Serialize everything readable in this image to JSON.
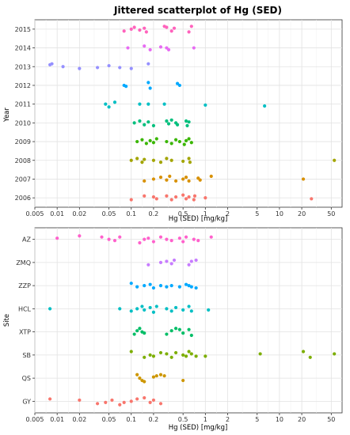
{
  "chart_data": [
    {
      "type": "scatter",
      "title": "Jittered scatterplot of Hg (SED)",
      "xlabel": "Hg (SED) [mg/kg]",
      "ylabel": "Year",
      "x_scale": "log10",
      "xlim": [
        0.005,
        70
      ],
      "x_ticks": [
        0.005,
        0.01,
        0.02,
        0.05,
        0.1,
        0.2,
        0.5,
        1,
        2,
        5,
        10,
        20,
        50
      ],
      "x_tick_labels": [
        "0.005",
        "0.01",
        "0.02",
        "0.05",
        "0.1",
        "0.2",
        "0.5",
        "1",
        "2",
        "5",
        "10",
        "20",
        "50"
      ],
      "grid": true,
      "categories": [
        "2006",
        "2007",
        "2008",
        "2009",
        "2010",
        "2011",
        "2012",
        "2013",
        "2014",
        "2015"
      ],
      "series": [
        {
          "category": "2006",
          "color": "#F8766D",
          "points": [
            [
              0.1,
              -0.1
            ],
            [
              0.15,
              0.1
            ],
            [
              0.2,
              0.05
            ],
            [
              0.22,
              -0.05
            ],
            [
              0.3,
              0.1
            ],
            [
              0.35,
              -0.1
            ],
            [
              0.4,
              0.05
            ],
            [
              0.5,
              0.15
            ],
            [
              0.55,
              -0.05
            ],
            [
              0.6,
              0.05
            ],
            [
              0.7,
              -0.1
            ],
            [
              0.72,
              0.1
            ],
            [
              1.0,
              0.0
            ],
            [
              27,
              -0.05
            ]
          ]
        },
        {
          "category": "2007",
          "color": "#D89000",
          "points": [
            [
              0.15,
              -0.1
            ],
            [
              0.2,
              0.0
            ],
            [
              0.25,
              0.1
            ],
            [
              0.3,
              -0.05
            ],
            [
              0.33,
              0.15
            ],
            [
              0.4,
              -0.1
            ],
            [
              0.5,
              0.0
            ],
            [
              0.55,
              0.1
            ],
            [
              0.6,
              -0.1
            ],
            [
              0.8,
              0.05
            ],
            [
              0.85,
              -0.05
            ],
            [
              1.2,
              0.15
            ],
            [
              21,
              0.0
            ]
          ]
        },
        {
          "category": "2008",
          "color": "#A3A500",
          "points": [
            [
              0.1,
              0.0
            ],
            [
              0.12,
              0.1
            ],
            [
              0.14,
              -0.1
            ],
            [
              0.15,
              0.05
            ],
            [
              0.2,
              0.0
            ],
            [
              0.25,
              -0.1
            ],
            [
              0.3,
              0.1
            ],
            [
              0.35,
              0.0
            ],
            [
              0.5,
              -0.05
            ],
            [
              0.6,
              0.1
            ],
            [
              0.62,
              -0.1
            ],
            [
              55,
              0.0
            ]
          ]
        },
        {
          "category": "2009",
          "color": "#39B600",
          "points": [
            [
              0.12,
              0.0
            ],
            [
              0.14,
              0.1
            ],
            [
              0.16,
              -0.1
            ],
            [
              0.18,
              0.05
            ],
            [
              0.2,
              -0.05
            ],
            [
              0.22,
              0.15
            ],
            [
              0.3,
              0.0
            ],
            [
              0.35,
              -0.1
            ],
            [
              0.4,
              0.1
            ],
            [
              0.45,
              0.0
            ],
            [
              0.52,
              -0.15
            ],
            [
              0.55,
              0.05
            ],
            [
              0.6,
              0.15
            ],
            [
              0.65,
              -0.05
            ]
          ]
        },
        {
          "category": "2010",
          "color": "#00BF7D",
          "points": [
            [
              0.11,
              0.0
            ],
            [
              0.13,
              0.1
            ],
            [
              0.15,
              -0.1
            ],
            [
              0.17,
              0.05
            ],
            [
              0.2,
              -0.15
            ],
            [
              0.3,
              0.1
            ],
            [
              0.32,
              -0.05
            ],
            [
              0.35,
              0.15
            ],
            [
              0.4,
              0.0
            ],
            [
              0.42,
              -0.1
            ],
            [
              0.55,
              0.1
            ],
            [
              0.57,
              -0.15
            ],
            [
              0.6,
              0.05
            ]
          ]
        },
        {
          "category": "2011",
          "color": "#00BFC4",
          "points": [
            [
              0.045,
              0.0
            ],
            [
              0.05,
              -0.15
            ],
            [
              0.06,
              0.1
            ],
            [
              0.13,
              0.0
            ],
            [
              0.17,
              0.0
            ],
            [
              0.28,
              0.0
            ],
            [
              1.0,
              -0.05
            ],
            [
              6.3,
              -0.1
            ]
          ]
        },
        {
          "category": "2012",
          "color": "#00A9FF",
          "points": [
            [
              0.08,
              0.0
            ],
            [
              0.085,
              -0.05
            ],
            [
              0.17,
              0.15
            ],
            [
              0.18,
              -0.15
            ],
            [
              0.42,
              0.1
            ],
            [
              0.45,
              0.0
            ]
          ]
        },
        {
          "category": "2013",
          "color": "#9590FF",
          "points": [
            [
              0.008,
              0.1
            ],
            [
              0.0085,
              0.15
            ],
            [
              0.012,
              0.0
            ],
            [
              0.02,
              -0.1
            ],
            [
              0.035,
              -0.05
            ],
            [
              0.05,
              0.05
            ],
            [
              0.07,
              -0.05
            ],
            [
              0.1,
              -0.1
            ],
            [
              0.17,
              0.15
            ]
          ]
        },
        {
          "category": "2014",
          "color": "#E76BF3",
          "points": [
            [
              0.09,
              0.0
            ],
            [
              0.15,
              0.1
            ],
            [
              0.18,
              -0.1
            ],
            [
              0.25,
              0.05
            ],
            [
              0.3,
              0.0
            ],
            [
              0.32,
              -0.1
            ],
            [
              0.7,
              0.0
            ]
          ]
        },
        {
          "category": "2015",
          "color": "#FF62BC",
          "points": [
            [
              0.08,
              -0.1
            ],
            [
              0.1,
              0.0
            ],
            [
              0.11,
              0.1
            ],
            [
              0.13,
              -0.05
            ],
            [
              0.15,
              0.05
            ],
            [
              0.16,
              -0.15
            ],
            [
              0.28,
              0.15
            ],
            [
              0.3,
              0.1
            ],
            [
              0.35,
              -0.1
            ],
            [
              0.38,
              0.05
            ],
            [
              0.6,
              -0.15
            ],
            [
              0.65,
              0.15
            ]
          ]
        }
      ]
    },
    {
      "type": "scatter",
      "xlabel": "Hg (SED) [mg/kg]",
      "ylabel": "Site",
      "x_scale": "log10",
      "xlim": [
        0.005,
        70
      ],
      "x_ticks": [
        0.005,
        0.01,
        0.02,
        0.05,
        0.1,
        0.2,
        0.5,
        1,
        2,
        5,
        10,
        20,
        50
      ],
      "x_tick_labels": [
        "0.005",
        "0.01",
        "0.02",
        "0.05",
        "0.1",
        "0.2",
        "0.5",
        "1",
        "2",
        "5",
        "10",
        "20",
        "50"
      ],
      "grid": true,
      "categories": [
        "GY",
        "QS",
        "SB",
        "XTP",
        "HCL",
        "ZZP",
        "ZMQ",
        "AZ"
      ],
      "series": [
        {
          "category": "GY",
          "color": "#F8766D",
          "points": [
            [
              0.008,
              0.1
            ],
            [
              0.02,
              0.05
            ],
            [
              0.035,
              -0.1
            ],
            [
              0.045,
              -0.05
            ],
            [
              0.055,
              0.05
            ],
            [
              0.07,
              -0.15
            ],
            [
              0.08,
              -0.05
            ],
            [
              0.1,
              0.0
            ],
            [
              0.12,
              0.1
            ],
            [
              0.15,
              0.15
            ],
            [
              0.18,
              -0.05
            ],
            [
              0.2,
              0.05
            ],
            [
              0.25,
              -0.1
            ]
          ]
        },
        {
          "category": "QS",
          "color": "#CD9600",
          "points": [
            [
              0.12,
              0.15
            ],
            [
              0.13,
              0.0
            ],
            [
              0.14,
              -0.1
            ],
            [
              0.15,
              -0.15
            ],
            [
              0.2,
              0.05
            ],
            [
              0.22,
              0.1
            ],
            [
              0.25,
              0.15
            ],
            [
              0.28,
              0.1
            ],
            [
              0.5,
              -0.1
            ]
          ]
        },
        {
          "category": "SB",
          "color": "#7CAE00",
          "points": [
            [
              0.1,
              0.15
            ],
            [
              0.15,
              -0.1
            ],
            [
              0.18,
              0.0
            ],
            [
              0.2,
              -0.05
            ],
            [
              0.25,
              0.1
            ],
            [
              0.3,
              0.05
            ],
            [
              0.35,
              -0.1
            ],
            [
              0.4,
              0.1
            ],
            [
              0.5,
              0.0
            ],
            [
              0.55,
              -0.05
            ],
            [
              0.6,
              0.15
            ],
            [
              0.65,
              0.05
            ],
            [
              0.75,
              -0.05
            ],
            [
              1.0,
              -0.05
            ],
            [
              5.5,
              0.05
            ],
            [
              21,
              0.15
            ],
            [
              26,
              -0.1
            ],
            [
              55,
              0.05
            ]
          ]
        },
        {
          "category": "XTP",
          "color": "#00BE67",
          "points": [
            [
              0.11,
              -0.1
            ],
            [
              0.12,
              0.05
            ],
            [
              0.13,
              0.15
            ],
            [
              0.14,
              0.0
            ],
            [
              0.15,
              -0.05
            ],
            [
              0.3,
              -0.1
            ],
            [
              0.35,
              0.05
            ],
            [
              0.4,
              0.15
            ],
            [
              0.45,
              0.1
            ],
            [
              0.5,
              -0.05
            ],
            [
              0.6,
              0.1
            ],
            [
              0.65,
              -0.15
            ]
          ]
        },
        {
          "category": "HCL",
          "color": "#00BFC4",
          "points": [
            [
              0.008,
              0.0
            ],
            [
              0.07,
              0.0
            ],
            [
              0.1,
              -0.1
            ],
            [
              0.12,
              0.0
            ],
            [
              0.14,
              0.1
            ],
            [
              0.15,
              -0.05
            ],
            [
              0.18,
              0.05
            ],
            [
              0.2,
              -0.15
            ],
            [
              0.22,
              0.1
            ],
            [
              0.3,
              0.0
            ],
            [
              0.35,
              -0.1
            ],
            [
              0.4,
              0.05
            ],
            [
              0.5,
              -0.05
            ],
            [
              0.6,
              0.1
            ],
            [
              0.65,
              -0.1
            ],
            [
              1.1,
              -0.05
            ]
          ]
        },
        {
          "category": "ZZP",
          "color": "#00A9FF",
          "points": [
            [
              0.1,
              0.1
            ],
            [
              0.12,
              -0.05
            ],
            [
              0.15,
              0.0
            ],
            [
              0.18,
              0.05
            ],
            [
              0.2,
              -0.1
            ],
            [
              0.25,
              0.0
            ],
            [
              0.3,
              -0.05
            ],
            [
              0.35,
              0.0
            ],
            [
              0.45,
              -0.05
            ],
            [
              0.55,
              0.05
            ],
            [
              0.6,
              0.0
            ],
            [
              0.65,
              -0.05
            ],
            [
              0.75,
              -0.1
            ]
          ]
        },
        {
          "category": "ZMQ",
          "color": "#C77CFF",
          "points": [
            [
              0.17,
              -0.1
            ],
            [
              0.25,
              0.0
            ],
            [
              0.3,
              0.05
            ],
            [
              0.35,
              -0.05
            ],
            [
              0.38,
              0.1
            ],
            [
              0.6,
              -0.1
            ],
            [
              0.65,
              0.05
            ],
            [
              0.75,
              0.1
            ]
          ]
        },
        {
          "category": "AZ",
          "color": "#FF61CC",
          "points": [
            [
              0.01,
              0.05
            ],
            [
              0.02,
              0.15
            ],
            [
              0.04,
              0.1
            ],
            [
              0.05,
              0.0
            ],
            [
              0.06,
              -0.05
            ],
            [
              0.07,
              0.1
            ],
            [
              0.13,
              -0.15
            ],
            [
              0.15,
              0.0
            ],
            [
              0.17,
              0.05
            ],
            [
              0.2,
              -0.1
            ],
            [
              0.25,
              0.1
            ],
            [
              0.3,
              0.0
            ],
            [
              0.35,
              -0.05
            ],
            [
              0.45,
              0.05
            ],
            [
              0.5,
              -0.1
            ],
            [
              0.55,
              0.1
            ],
            [
              0.7,
              0.0
            ],
            [
              0.8,
              -0.05
            ],
            [
              1.2,
              0.1
            ]
          ]
        }
      ]
    }
  ]
}
